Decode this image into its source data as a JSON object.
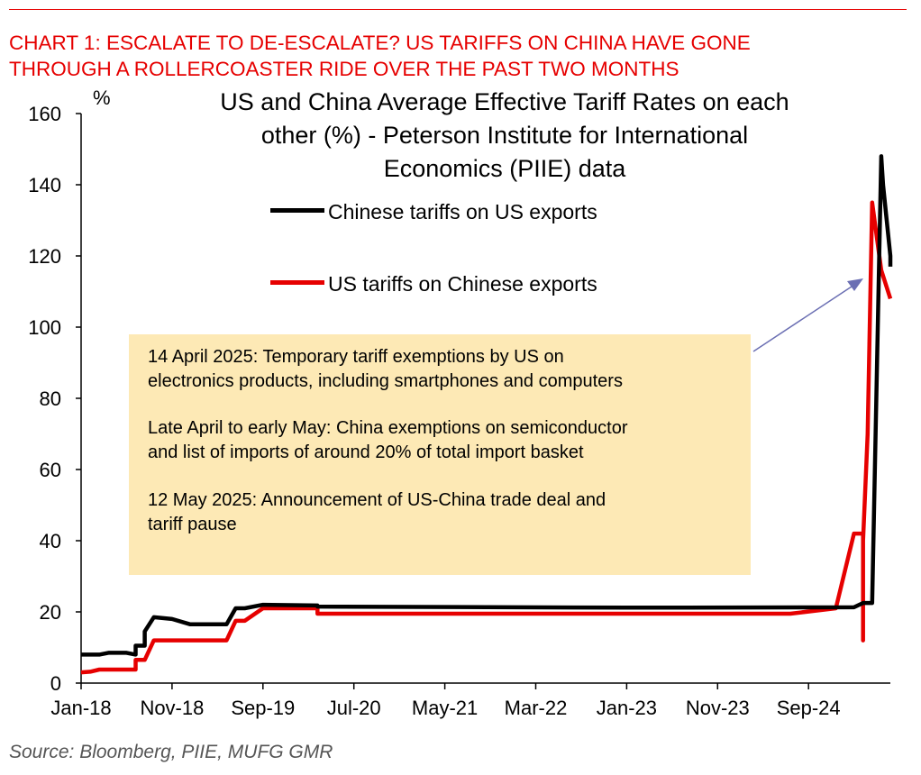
{
  "header": {
    "line1": "CHART 1: ESCALATE TO DE-ESCALATE? US TARIFFS ON CHINA HAVE GONE",
    "line2": "THROUGH A ROLLERCOASTER RIDE OVER THE PAST TWO MONTHS"
  },
  "source": "Source: Bloomberg, PIIE, MUFG GMR",
  "colors": {
    "accent": "#e60000",
    "note_bg": "#fde9b5",
    "arrow": "#6b6fb3"
  },
  "chart_data": {
    "type": "line",
    "title_lines": [
      "US and China Average Effective Tariff Rates on each",
      "other (%) - Peterson Institute for International",
      "Economics (PIIE) data"
    ],
    "ylabel": "%",
    "ylim": [
      0,
      160
    ],
    "yticks": [
      0,
      20,
      40,
      60,
      80,
      100,
      120,
      140,
      160
    ],
    "xlim": [
      0,
      89
    ],
    "xticks": [
      {
        "label": "Jan-18",
        "x": 0
      },
      {
        "label": "Nov-18",
        "x": 10
      },
      {
        "label": "Sep-19",
        "x": 20
      },
      {
        "label": "Jul-20",
        "x": 30
      },
      {
        "label": "May-21",
        "x": 40
      },
      {
        "label": "Mar-22",
        "x": 50
      },
      {
        "label": "Jan-23",
        "x": 60
      },
      {
        "label": "Nov-23",
        "x": 70
      },
      {
        "label": "Sep-24",
        "x": 80
      }
    ],
    "x_unit": "months since Jan-2018",
    "series": [
      {
        "name": "Chinese tariffs on US exports",
        "color": "#000000",
        "points": [
          [
            0,
            8
          ],
          [
            2,
            8
          ],
          [
            3,
            8.5
          ],
          [
            5,
            8.5
          ],
          [
            6,
            8
          ],
          [
            6,
            10.5
          ],
          [
            7,
            10.5
          ],
          [
            7,
            14.5
          ],
          [
            8,
            18.5
          ],
          [
            10,
            18
          ],
          [
            12,
            16.5
          ],
          [
            16,
            16.5
          ],
          [
            17,
            21
          ],
          [
            18,
            21
          ],
          [
            20,
            22
          ],
          [
            26,
            21.8
          ],
          [
            26,
            21.5
          ],
          [
            60,
            21.2
          ],
          [
            85,
            21.3
          ],
          [
            86,
            22.5
          ],
          [
            87,
            22.5
          ],
          [
            88,
            148
          ],
          [
            88.2,
            140
          ],
          [
            89,
            120
          ],
          [
            89,
            117
          ]
        ]
      },
      {
        "name": "US tariffs on Chinese exports",
        "color": "#e60000",
        "points": [
          [
            0,
            3
          ],
          [
            1,
            3.2
          ],
          [
            2,
            3.8
          ],
          [
            6,
            3.8
          ],
          [
            6,
            6.5
          ],
          [
            7,
            6.5
          ],
          [
            8,
            12
          ],
          [
            16,
            12
          ],
          [
            17,
            17.5
          ],
          [
            18,
            17.5
          ],
          [
            20,
            21
          ],
          [
            25,
            21
          ],
          [
            26,
            21
          ],
          [
            26,
            19.5
          ],
          [
            50,
            19.5
          ],
          [
            78,
            19.5
          ],
          [
            83,
            21
          ],
          [
            85,
            42
          ],
          [
            86,
            42
          ],
          [
            86,
            12
          ],
          [
            86,
            40
          ],
          [
            86.5,
            70
          ],
          [
            87,
            135
          ],
          [
            88,
            116
          ],
          [
            89,
            108
          ]
        ]
      }
    ],
    "annotation": {
      "lines": [
        "14 April 2025: Temporary tariff exemptions by US on",
        "electronics products, including smartphones and computers",
        "Late April to early May: China exemptions on semiconductor",
        "and list of imports of around 20% of total import basket",
        "12 May 2025: Announcement of US-China trade deal and",
        "tariff pause"
      ]
    }
  }
}
